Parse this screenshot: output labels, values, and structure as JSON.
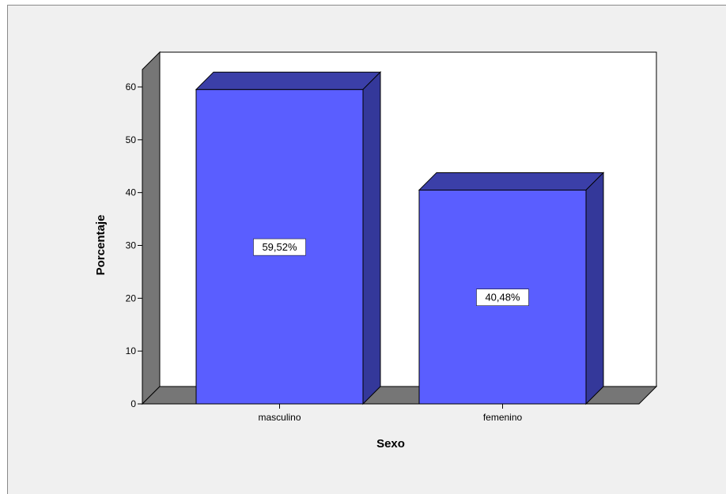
{
  "chart_data": {
    "type": "bar",
    "style": "3d",
    "title": "",
    "xlabel": "Sexo",
    "ylabel": "Porcentaje",
    "categories": [
      "masculino",
      "femenino"
    ],
    "values": [
      59.52,
      40.48
    ],
    "data_labels": [
      "59,52%",
      "40,48%"
    ],
    "ylim": [
      0,
      60
    ],
    "yticks": [
      0,
      10,
      20,
      30,
      40,
      50,
      60
    ],
    "grid": false,
    "legend": "none",
    "colors": {
      "bar_front": "#5a5eff",
      "bar_top": "#3b3fa8",
      "bar_side": "#34389a",
      "back_wall": "#ffffff",
      "left_wall": "#767676",
      "floor": "#767676",
      "frame_background": "#f0f0f0"
    }
  }
}
